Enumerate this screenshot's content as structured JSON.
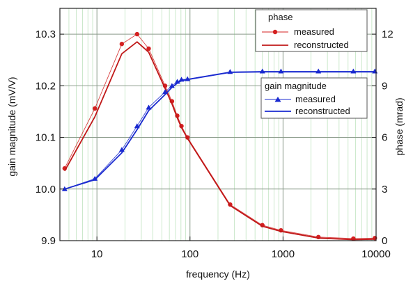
{
  "chart_data": {
    "type": "line",
    "xlabel": "frequency (Hz)",
    "xscale": "log",
    "xlim": [
      4,
      10000
    ],
    "xticks": [
      10,
      100,
      1000,
      10000
    ],
    "ylabel_left": "gain magnitude (mV/V)",
    "ylim_left": [
      9.9,
      10.35
    ],
    "yticks_left": [
      9.9,
      10.0,
      10.1,
      10.2,
      10.3
    ],
    "ylabel_right": "phase (mrad)",
    "ylim_right": [
      0,
      13.5
    ],
    "yticks_right": [
      0,
      3,
      6,
      9,
      12
    ],
    "grid": true,
    "legends": [
      {
        "title": "phase",
        "placement": "top-right",
        "items": [
          "measured",
          "reconstructed"
        ]
      },
      {
        "title": "gain magnitude",
        "placement": "upper-right",
        "items": [
          "measured",
          "reconstructed"
        ]
      }
    ],
    "series": [
      {
        "group": "phase",
        "kind": "measured",
        "axis": "left",
        "marker": "circle",
        "color": "#d42020",
        "x": [
          4.5,
          9.5,
          18.5,
          27,
          36,
          54,
          64,
          73,
          81,
          94,
          270,
          600,
          950,
          2400,
          5700,
          9700
        ],
        "y": [
          10.04,
          10.156,
          10.281,
          10.3,
          10.272,
          10.2,
          10.17,
          10.142,
          10.122,
          10.1,
          9.97,
          9.93,
          9.92,
          9.907,
          9.904,
          9.905
        ]
      },
      {
        "group": "phase",
        "kind": "reconstructed",
        "axis": "left",
        "color": "#c01818",
        "x": [
          4.5,
          9.5,
          18.5,
          27,
          36,
          54,
          64,
          73,
          81,
          94,
          270,
          600,
          950,
          2400,
          5700,
          9700
        ],
        "y": [
          10.035,
          10.14,
          10.262,
          10.285,
          10.265,
          10.195,
          10.165,
          10.138,
          10.119,
          10.098,
          9.968,
          9.928,
          9.918,
          9.905,
          9.902,
          9.903
        ]
      },
      {
        "group": "gain magnitude",
        "kind": "measured",
        "axis": "left",
        "marker": "triangle",
        "color": "#1a2ad0",
        "x": [
          4.5,
          9.5,
          18.5,
          27,
          36,
          54,
          64,
          73,
          81,
          94,
          270,
          600,
          950,
          2400,
          5700,
          9700
        ],
        "y": [
          10.0,
          10.02,
          10.076,
          10.122,
          10.158,
          10.188,
          10.2,
          10.208,
          10.212,
          10.213,
          10.227,
          10.228,
          10.228,
          10.228,
          10.228,
          10.228
        ]
      },
      {
        "group": "gain magnitude",
        "kind": "reconstructed",
        "axis": "left",
        "color": "#1a2ad0",
        "x": [
          4.5,
          9.5,
          18.5,
          27,
          36,
          54,
          64,
          73,
          81,
          94,
          270,
          600,
          950,
          2400,
          5700,
          9700
        ],
        "y": [
          10.0,
          10.018,
          10.07,
          10.115,
          10.152,
          10.183,
          10.197,
          10.205,
          10.21,
          10.212,
          10.226,
          10.227,
          10.227,
          10.227,
          10.227,
          10.227
        ]
      }
    ]
  }
}
